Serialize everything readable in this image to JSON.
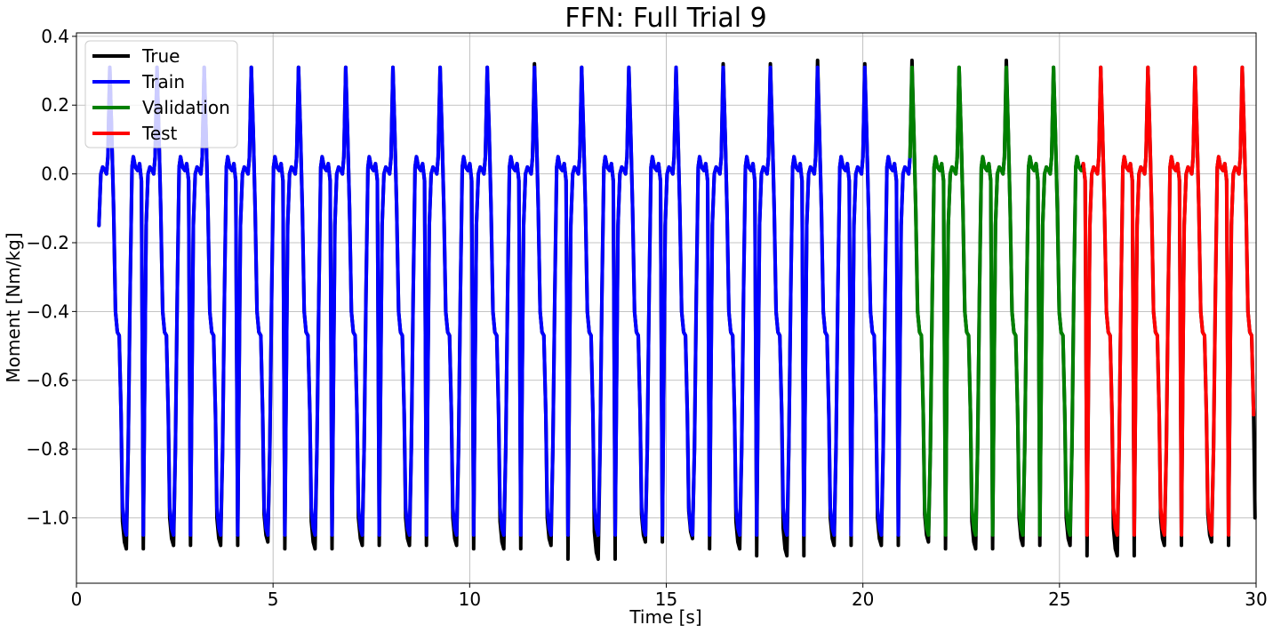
{
  "chart_data": {
    "type": "line",
    "title": "FFN: Full Trial 9",
    "xlabel": "Time [s]",
    "ylabel": "Moment [Nm/kg]",
    "xlim": [
      0,
      30
    ],
    "ylim": [
      -1.19,
      0.41
    ],
    "xticks": [
      0,
      5,
      10,
      15,
      20,
      25,
      30
    ],
    "xtick_labels": [
      "0",
      "5",
      "10",
      "15",
      "20",
      "25",
      "30"
    ],
    "yticks": [
      -1.0,
      -0.8,
      -0.6,
      -0.4,
      -0.2,
      0.0,
      0.2,
      0.4
    ],
    "ytick_labels": [
      "−1.0",
      "−0.8",
      "−0.6",
      "−0.4",
      "−0.2",
      "0.0",
      "0.2",
      "0.4"
    ],
    "grid": true,
    "legend_position": "top-left",
    "gait_cycle": {
      "period_s": 1.2,
      "first_cycle_start_s": 0.5,
      "num_cycles": 25,
      "shape": [
        [
          0.0,
          -1.05
        ],
        [
          0.03,
          -0.6
        ],
        [
          0.06,
          -0.15
        ],
        [
          0.1,
          0.0
        ],
        [
          0.14,
          0.02
        ],
        [
          0.19,
          0.01
        ],
        [
          0.22,
          0.0
        ],
        [
          0.25,
          0.05
        ],
        [
          0.29,
          0.31
        ],
        [
          0.33,
          0.12
        ],
        [
          0.37,
          -0.1
        ],
        [
          0.41,
          -0.4
        ],
        [
          0.45,
          -0.46
        ],
        [
          0.49,
          -0.47
        ],
        [
          0.53,
          -0.7
        ],
        [
          0.56,
          -0.97
        ],
        [
          0.6,
          -1.03
        ],
        [
          0.64,
          -1.05
        ],
        [
          0.68,
          -0.8
        ],
        [
          0.72,
          -0.35
        ],
        [
          0.76,
          0.02
        ],
        [
          0.79,
          0.05
        ],
        [
          0.83,
          0.02
        ],
        [
          0.88,
          0.01
        ],
        [
          0.92,
          0.03
        ],
        [
          0.96,
          -0.02
        ],
        [
          1.0,
          -1.05
        ]
      ]
    },
    "series": [
      {
        "name": "True",
        "color": "#000000",
        "x_range": [
          0.55,
          30.0
        ],
        "trough_offsets": [
          -0.04,
          -0.03,
          -0.03,
          -0.02,
          -0.04,
          -0.03,
          -0.03,
          -0.03,
          -0.04,
          -0.03,
          -0.07,
          -0.02,
          -0.01,
          -0.04,
          -0.06,
          -0.03,
          -0.03,
          -0.02,
          -0.04,
          -0.03,
          -0.03,
          -0.06,
          -0.03,
          -0.02,
          -0.03
        ],
        "peak_offsets": [
          0.0,
          0.0,
          0.0,
          0.0,
          0.0,
          0.0,
          0.0,
          0.0,
          0.0,
          0.01,
          0.0,
          0.0,
          0.0,
          0.01,
          0.01,
          0.02,
          0.01,
          0.02,
          0.0,
          0.02,
          0.0,
          0.0,
          0.0,
          0.0,
          0.0
        ]
      },
      {
        "name": "Train",
        "color": "#0000ff",
        "x_range": [
          0.55,
          21.2
        ]
      },
      {
        "name": "Validation",
        "color": "#008000",
        "x_range": [
          21.2,
          25.6
        ]
      },
      {
        "name": "Test",
        "color": "#ff0000",
        "x_range": [
          25.6,
          29.95
        ]
      }
    ]
  }
}
